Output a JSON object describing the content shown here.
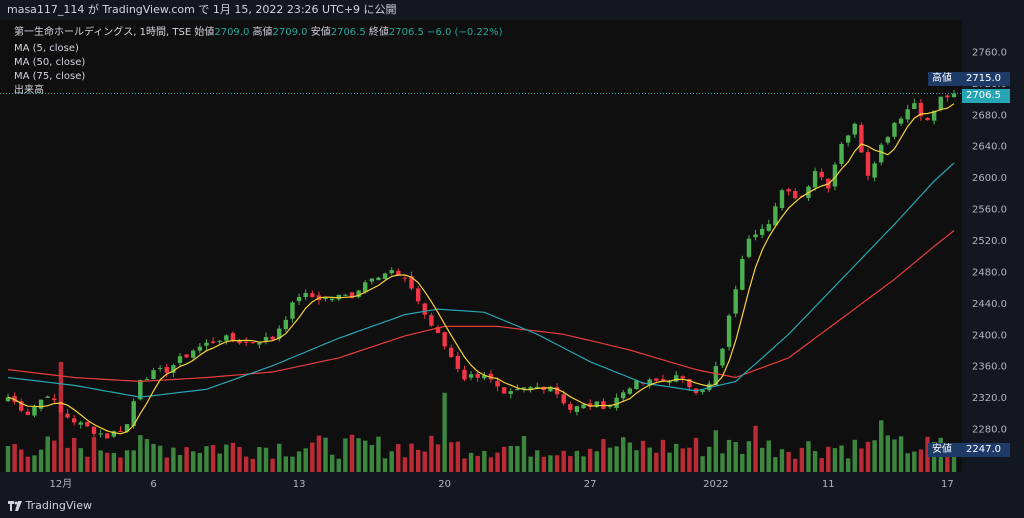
{
  "header": {
    "attribution": "masa117_114 が TradingView.com で 1月 15, 2022 23:26 UTC+9 に公開"
  },
  "legend": {
    "symbol": "第一生命ホールディングス, 1時間, TSE",
    "open_label": "始値",
    "open": "2709.0",
    "high_label": "高値",
    "high": "2709.0",
    "low_label": "安値",
    "low": "2706.5",
    "close_label": "終値",
    "close": "2706.5",
    "change": "−6.0 (−0.22%)",
    "ma5": "MA (5, close)",
    "ma50": "MA (50, close)",
    "ma75": "MA (75, close)",
    "volume": "出来高"
  },
  "price_tags": {
    "high_label": "高値",
    "high_value": "2715.0",
    "last_value": "2706.5",
    "low_label": "安値",
    "low_value": "2247.0"
  },
  "footer": {
    "logo_text": "TradingView"
  },
  "colors": {
    "up": "#4caf50",
    "down": "#f23645",
    "ma5": "#f5d13b",
    "ma50": "#26a6b4",
    "ma75": "#e83e3e",
    "bg": "#0f0f0f",
    "last": "#26a6b4",
    "tag": "#1e3a66"
  },
  "chart_data": {
    "type": "candlestick",
    "ylim": [
      2240,
      2800
    ],
    "yticks": [
      2280,
      2320,
      2360,
      2400,
      2440,
      2480,
      2520,
      2560,
      2600,
      2640,
      2680,
      2720,
      2760,
      2800
    ],
    "xticks": [
      {
        "label": "12月",
        "bar": 8
      },
      {
        "label": "6",
        "bar": 22
      },
      {
        "label": "13",
        "bar": 44
      },
      {
        "label": "20",
        "bar": 66
      },
      {
        "label": "27",
        "bar": 88
      },
      {
        "label": "2022",
        "bar": 107
      },
      {
        "label": "11",
        "bar": 124
      },
      {
        "label": "17",
        "bar": 142
      }
    ],
    "series": [
      {
        "name": "MA (5, close)"
      },
      {
        "name": "MA (50, close)"
      },
      {
        "name": "MA (75, close)"
      }
    ],
    "keypoints": [
      {
        "bar": 0,
        "close": 2320
      },
      {
        "bar": 3,
        "close": 2300
      },
      {
        "bar": 6,
        "close": 2325
      },
      {
        "bar": 8,
        "close": 2300
      },
      {
        "bar": 11,
        "close": 2285
      },
      {
        "bar": 15,
        "close": 2270
      },
      {
        "bar": 18,
        "close": 2285
      },
      {
        "bar": 20,
        "close": 2345
      },
      {
        "bar": 24,
        "close": 2355
      },
      {
        "bar": 28,
        "close": 2380
      },
      {
        "bar": 32,
        "close": 2395
      },
      {
        "bar": 36,
        "close": 2390
      },
      {
        "bar": 40,
        "close": 2395
      },
      {
        "bar": 44,
        "close": 2450
      },
      {
        "bar": 48,
        "close": 2445
      },
      {
        "bar": 52,
        "close": 2450
      },
      {
        "bar": 55,
        "close": 2475
      },
      {
        "bar": 58,
        "close": 2480
      },
      {
        "bar": 61,
        "close": 2460
      },
      {
        "bar": 63,
        "close": 2425
      },
      {
        "bar": 66,
        "close": 2385
      },
      {
        "bar": 69,
        "close": 2345
      },
      {
        "bar": 72,
        "close": 2350
      },
      {
        "bar": 75,
        "close": 2320
      },
      {
        "bar": 78,
        "close": 2330
      },
      {
        "bar": 82,
        "close": 2335
      },
      {
        "bar": 85,
        "close": 2305
      },
      {
        "bar": 88,
        "close": 2310
      },
      {
        "bar": 91,
        "close": 2310
      },
      {
        "bar": 94,
        "close": 2335
      },
      {
        "bar": 98,
        "close": 2340
      },
      {
        "bar": 101,
        "close": 2345
      },
      {
        "bar": 104,
        "close": 2330
      },
      {
        "bar": 106,
        "close": 2335
      },
      {
        "bar": 108,
        "close": 2380
      },
      {
        "bar": 110,
        "close": 2460
      },
      {
        "bar": 112,
        "close": 2525
      },
      {
        "bar": 115,
        "close": 2545
      },
      {
        "bar": 117,
        "close": 2580
      },
      {
        "bar": 120,
        "close": 2575
      },
      {
        "bar": 122,
        "close": 2610
      },
      {
        "bar": 124,
        "close": 2590
      },
      {
        "bar": 126,
        "close": 2645
      },
      {
        "bar": 128,
        "close": 2665
      },
      {
        "bar": 130,
        "close": 2605
      },
      {
        "bar": 132,
        "close": 2640
      },
      {
        "bar": 134,
        "close": 2670
      },
      {
        "bar": 137,
        "close": 2695
      },
      {
        "bar": 139,
        "close": 2670
      },
      {
        "bar": 141,
        "close": 2700
      },
      {
        "bar": 143,
        "close": 2706.5
      }
    ],
    "ma50_keys": [
      {
        "bar": 0,
        "value": 2345
      },
      {
        "bar": 10,
        "value": 2335
      },
      {
        "bar": 20,
        "value": 2320
      },
      {
        "bar": 30,
        "value": 2330
      },
      {
        "bar": 40,
        "value": 2360
      },
      {
        "bar": 50,
        "value": 2395
      },
      {
        "bar": 60,
        "value": 2425
      },
      {
        "bar": 65,
        "value": 2432
      },
      {
        "bar": 72,
        "value": 2428
      },
      {
        "bar": 80,
        "value": 2400
      },
      {
        "bar": 88,
        "value": 2365
      },
      {
        "bar": 96,
        "value": 2338
      },
      {
        "bar": 104,
        "value": 2328
      },
      {
        "bar": 110,
        "value": 2340
      },
      {
        "bar": 118,
        "value": 2400
      },
      {
        "bar": 126,
        "value": 2470
      },
      {
        "bar": 134,
        "value": 2540
      },
      {
        "bar": 140,
        "value": 2595
      },
      {
        "bar": 143,
        "value": 2618
      }
    ],
    "ma75_keys": [
      {
        "bar": 0,
        "value": 2355
      },
      {
        "bar": 10,
        "value": 2345
      },
      {
        "bar": 20,
        "value": 2340
      },
      {
        "bar": 30,
        "value": 2345
      },
      {
        "bar": 40,
        "value": 2352
      },
      {
        "bar": 50,
        "value": 2370
      },
      {
        "bar": 60,
        "value": 2398
      },
      {
        "bar": 66,
        "value": 2410
      },
      {
        "bar": 74,
        "value": 2410
      },
      {
        "bar": 84,
        "value": 2400
      },
      {
        "bar": 94,
        "value": 2380
      },
      {
        "bar": 104,
        "value": 2355
      },
      {
        "bar": 110,
        "value": 2345
      },
      {
        "bar": 118,
        "value": 2370
      },
      {
        "bar": 126,
        "value": 2420
      },
      {
        "bar": 134,
        "value": 2470
      },
      {
        "bar": 140,
        "value": 2512
      },
      {
        "bar": 143,
        "value": 2532
      }
    ],
    "volume_spikes": [
      {
        "bar": 8,
        "value": 1.0,
        "up": false
      },
      {
        "bar": 66,
        "value": 0.72,
        "up": true
      },
      {
        "bar": 107,
        "value": 0.38,
        "up": true
      },
      {
        "bar": 113,
        "value": 0.42,
        "up": false
      },
      {
        "bar": 132,
        "value": 0.47,
        "up": true
      }
    ]
  }
}
